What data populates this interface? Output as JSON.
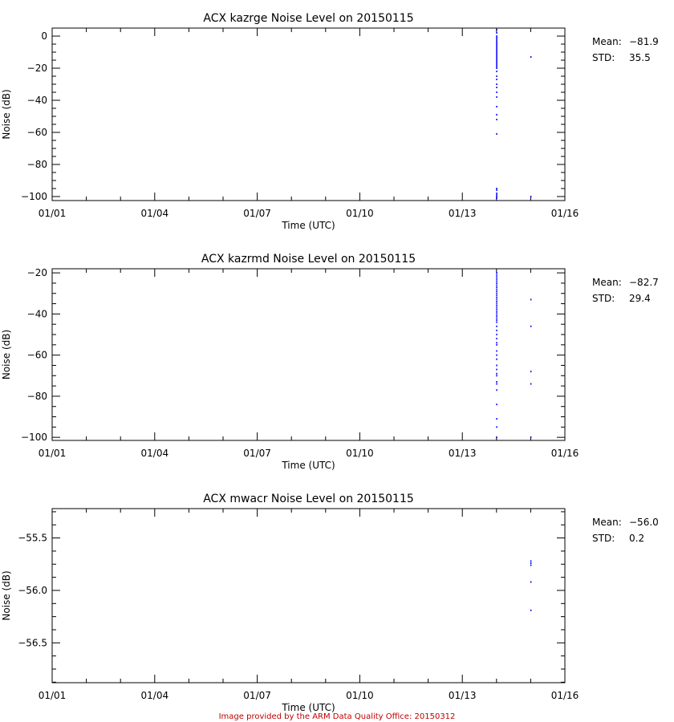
{
  "footer": "Image provided by the ARM Data Quality Office: 20150312",
  "colors": {
    "points": "#0000ff",
    "footer": "#c00000",
    "axes": "#000000"
  },
  "chart_data": [
    {
      "type": "scatter",
      "title": "ACX kazrge Noise Level on 20150115",
      "xlabel": "Time (UTC)",
      "ylabel": "Noise (dB)",
      "xticks": [
        "01/01",
        "01/04",
        "01/07",
        "01/10",
        "01/13",
        "01/16"
      ],
      "xlim_days": [
        0,
        15
      ],
      "ylim": [
        -102.5,
        5
      ],
      "yticks": [
        0,
        -20,
        -40,
        -60,
        -80,
        -100
      ],
      "ytick_labels": [
        "0",
        "−20",
        "−40",
        "−60",
        "−80",
        "−100"
      ],
      "stats": {
        "mean_label": "Mean:",
        "mean": "−81.9",
        "std_label": "STD:",
        "std": "35.5"
      },
      "series": [
        {
          "x_day": 13.0,
          "y": [
            4,
            2,
            0,
            -1,
            -2,
            -3,
            -4,
            -5,
            -6,
            -7,
            -8,
            -9,
            -10,
            -11,
            -12,
            -13,
            -14,
            -15,
            -16,
            -17,
            -18,
            -19,
            -20,
            -22,
            -25,
            -27,
            -30,
            -32,
            -35,
            -38,
            -44,
            -49,
            -52,
            -61,
            -95,
            -96,
            -98,
            -99,
            -100,
            -101
          ]
        },
        {
          "x_day": 14.0,
          "y": [
            -13,
            -100
          ]
        }
      ]
    },
    {
      "type": "scatter",
      "title": "ACX kazrmd Noise Level on 20150115",
      "xlabel": "Time (UTC)",
      "ylabel": "Noise (dB)",
      "xticks": [
        "01/01",
        "01/04",
        "01/07",
        "01/10",
        "01/13",
        "01/16"
      ],
      "xlim_days": [
        0,
        15
      ],
      "ylim": [
        -101.5,
        -18
      ],
      "yticks": [
        -20,
        -40,
        -60,
        -80,
        -100
      ],
      "ytick_labels": [
        "−20",
        "−40",
        "−60",
        "−80",
        "−100"
      ],
      "stats": {
        "mean_label": "Mean:",
        "mean": "−82.7",
        "std_label": "STD:",
        "std": "29.4"
      },
      "series": [
        {
          "x_day": 13.0,
          "y": [
            -20,
            -21,
            -22,
            -23,
            -24,
            -25,
            -26,
            -27,
            -28,
            -29,
            -30,
            -31,
            -32,
            -33,
            -34,
            -35,
            -36,
            -37,
            -38,
            -39,
            -40,
            -41,
            -42,
            -43,
            -44,
            -46,
            -48,
            -50,
            -52,
            -54,
            -55,
            -58,
            -60,
            -62,
            -65,
            -67,
            -69,
            -70,
            -73,
            -74,
            -77,
            -84,
            -91,
            -95,
            -100
          ]
        },
        {
          "x_day": 14.0,
          "y": [
            -33,
            -46,
            -68,
            -74,
            -100
          ]
        }
      ]
    },
    {
      "type": "scatter",
      "title": "ACX mwacr Noise Level on 20150115",
      "xlabel": "Time (UTC)",
      "ylabel": "Noise (dB)",
      "xticks": [
        "01/01",
        "01/04",
        "01/07",
        "01/10",
        "01/13",
        "01/16"
      ],
      "xlim_days": [
        0,
        15
      ],
      "ylim": [
        -56.88,
        -55.22
      ],
      "yticks": [
        -55.5,
        -56.0,
        -56.5
      ],
      "ytick_labels": [
        "−55.5",
        "−56.0",
        "−56.5"
      ],
      "stats": {
        "mean_label": "Mean:",
        "mean": "−56.0",
        "std_label": "STD:",
        "std": "0.2"
      },
      "series": [
        {
          "x_day": 14.0,
          "y": [
            -55.72,
            -55.74,
            -55.76,
            -55.92,
            -56.19
          ]
        }
      ]
    }
  ]
}
